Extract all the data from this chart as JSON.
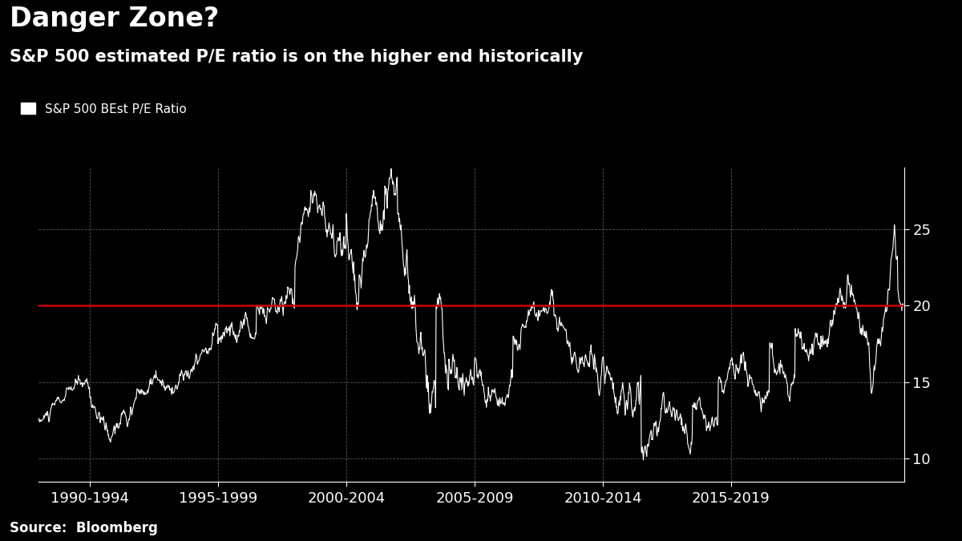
{
  "title": "Danger Zone?",
  "subtitle": "S&P 500 estimated P/E ratio is on the higher end historically",
  "legend_label": "S&P 500 BEst P/E Ratio",
  "source": "Source:  Bloomberg",
  "background_color": "#000000",
  "line_color": "#ffffff",
  "red_line_value": 20.0,
  "red_line_color": "#cc0000",
  "grid_color": "#555555",
  "text_color": "#ffffff",
  "ylim": [
    8.5,
    29
  ],
  "yticks": [
    10,
    15,
    20,
    25
  ],
  "x_tick_labels": [
    "1990-1994",
    "1995-1999",
    "2000-2004",
    "2005-2009",
    "2010-2014",
    "2015-2019"
  ],
  "title_fontsize": 24,
  "subtitle_fontsize": 15,
  "tick_fontsize": 13,
  "source_fontsize": 12,
  "legend_fontsize": 11
}
